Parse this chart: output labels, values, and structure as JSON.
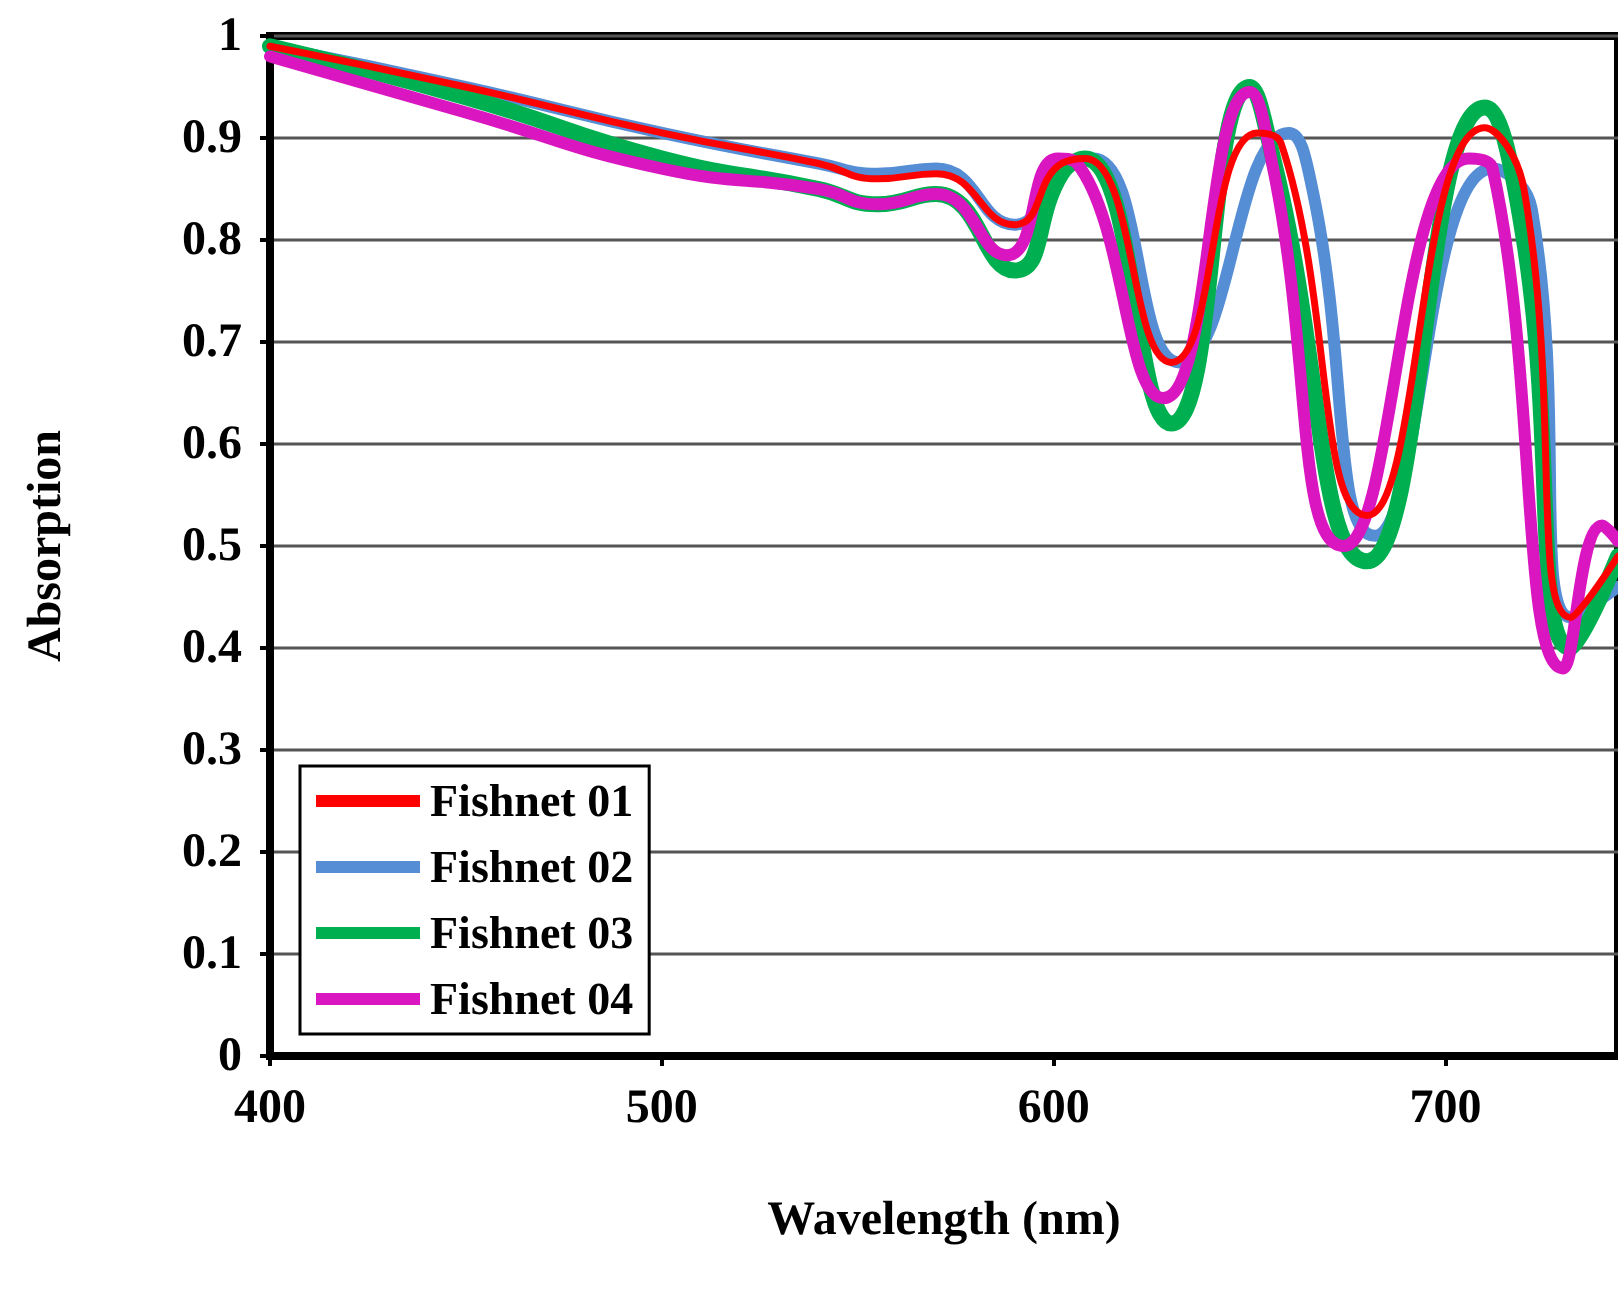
{
  "chart_data": {
    "type": "line",
    "xlabel": "Wavelength (nm)",
    "ylabel": "Absorption",
    "xlim": [
      400,
      744
    ],
    "xticks": [
      400,
      500,
      600,
      700
    ],
    "ylim": [
      0,
      1
    ],
    "yticks": [
      0,
      0.1,
      0.2,
      0.3,
      0.4,
      0.5,
      0.6,
      0.7,
      0.8,
      0.9,
      1
    ],
    "grid": "y",
    "legend": "bottom left",
    "line_style": "solid",
    "marker": "none",
    "series": [
      {
        "name": "Fishnet 01",
        "color": "#ff0000",
        "x": [
          400,
          450,
          500,
          540,
          555,
          570,
          590,
          602,
          608,
          630,
          652,
          658,
          680,
          710,
          720,
          732,
          744
        ],
        "values": [
          0.99,
          0.95,
          0.905,
          0.875,
          0.86,
          0.865,
          0.815,
          0.875,
          0.88,
          0.68,
          0.905,
          0.895,
          0.53,
          0.91,
          0.85,
          0.43,
          0.49
        ]
      },
      {
        "name": "Fishnet 02",
        "color": "#558ed5",
        "x": [
          400,
          450,
          500,
          540,
          555,
          570,
          590,
          602,
          610,
          632,
          660,
          666,
          682,
          712,
          722,
          732,
          744
        ],
        "values": [
          0.99,
          0.95,
          0.905,
          0.875,
          0.865,
          0.87,
          0.815,
          0.87,
          0.88,
          0.68,
          0.905,
          0.85,
          0.51,
          0.87,
          0.83,
          0.43,
          0.46
        ]
      },
      {
        "name": "Fishnet 03",
        "color": "#00b050",
        "x": [
          400,
          450,
          500,
          540,
          555,
          570,
          590,
          602,
          608,
          630,
          650,
          656,
          680,
          710,
          720,
          732,
          744
        ],
        "values": [
          0.99,
          0.94,
          0.88,
          0.85,
          0.835,
          0.845,
          0.77,
          0.865,
          0.88,
          0.62,
          0.95,
          0.88,
          0.485,
          0.93,
          0.8,
          0.4,
          0.49
        ]
      },
      {
        "name": "Fishnet 04",
        "color": "#d916c0",
        "x": [
          400,
          450,
          500,
          540,
          555,
          570,
          588,
          601,
          606,
          628,
          650,
          656,
          674,
          706,
          712,
          730,
          740,
          744
        ],
        "values": [
          0.98,
          0.925,
          0.87,
          0.85,
          0.835,
          0.845,
          0.785,
          0.88,
          0.875,
          0.645,
          0.945,
          0.87,
          0.5,
          0.88,
          0.87,
          0.38,
          0.52,
          0.505
        ]
      }
    ]
  }
}
